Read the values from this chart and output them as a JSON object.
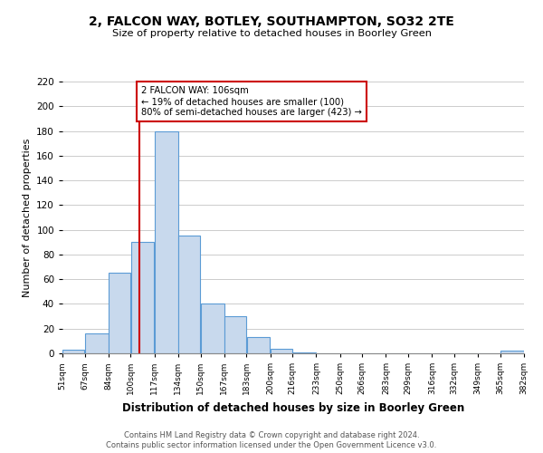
{
  "title": "2, FALCON WAY, BOTLEY, SOUTHAMPTON, SO32 2TE",
  "subtitle": "Size of property relative to detached houses in Boorley Green",
  "xlabel": "Distribution of detached houses by size in Boorley Green",
  "ylabel": "Number of detached properties",
  "bin_edges": [
    51,
    67,
    84,
    100,
    117,
    134,
    150,
    167,
    183,
    200,
    216,
    233,
    250,
    266,
    283,
    299,
    316,
    332,
    349,
    365,
    382
  ],
  "bar_heights": [
    3,
    16,
    65,
    90,
    180,
    95,
    40,
    30,
    13,
    4,
    1,
    0,
    0,
    0,
    0,
    0,
    0,
    0,
    0,
    2
  ],
  "bar_color": "#c8d9ed",
  "bar_edgecolor": "#5b9bd5",
  "property_line_x": 106,
  "property_line_color": "#cc0000",
  "annotation_text": "2 FALCON WAY: 106sqm\n← 19% of detached houses are smaller (100)\n80% of semi-detached houses are larger (423) →",
  "annotation_box_edgecolor": "#cc0000",
  "annotation_box_facecolor": "#ffffff",
  "ylim": [
    0,
    220
  ],
  "tick_labels": [
    "51sqm",
    "67sqm",
    "84sqm",
    "100sqm",
    "117sqm",
    "134sqm",
    "150sqm",
    "167sqm",
    "183sqm",
    "200sqm",
    "216sqm",
    "233sqm",
    "250sqm",
    "266sqm",
    "283sqm",
    "299sqm",
    "316sqm",
    "332sqm",
    "349sqm",
    "365sqm",
    "382sqm"
  ],
  "footer_line1": "Contains HM Land Registry data © Crown copyright and database right 2024.",
  "footer_line2": "Contains public sector information licensed under the Open Government Licence v3.0.",
  "background_color": "#ffffff",
  "grid_color": "#cccccc"
}
